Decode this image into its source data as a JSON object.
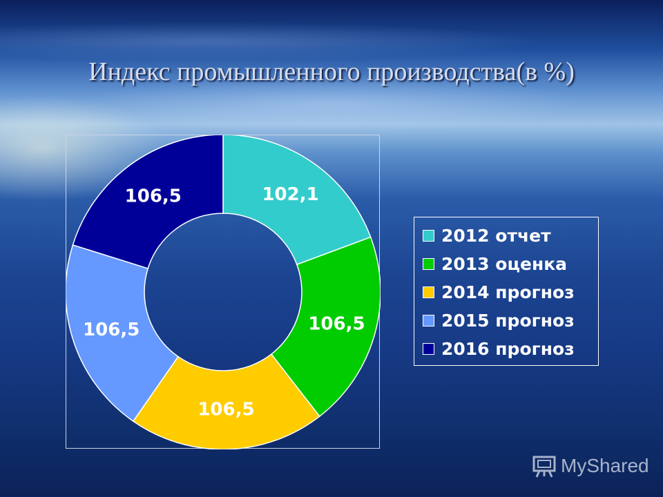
{
  "title": "Индекс промышленного производства(в %)",
  "chart_data": {
    "type": "pie",
    "title": "Индекс промышленного производства(в %)",
    "categories": [
      "2012 отчет",
      "2013 оценка",
      "2014 прогноз",
      "2015 прогноз",
      "2016 прогноз"
    ],
    "values": [
      102.1,
      106.5,
      106.5,
      106.5,
      106.5
    ],
    "data_labels": [
      "102,1",
      "106,5",
      "106,5",
      "106,5",
      "106,5"
    ],
    "colors": [
      "#33cccc",
      "#00cc00",
      "#ffcc00",
      "#6699ff",
      "#000099"
    ],
    "donut": true,
    "legend_position": "right"
  },
  "watermark": {
    "text": "MyShared",
    "icon": "presentation-board-icon"
  }
}
